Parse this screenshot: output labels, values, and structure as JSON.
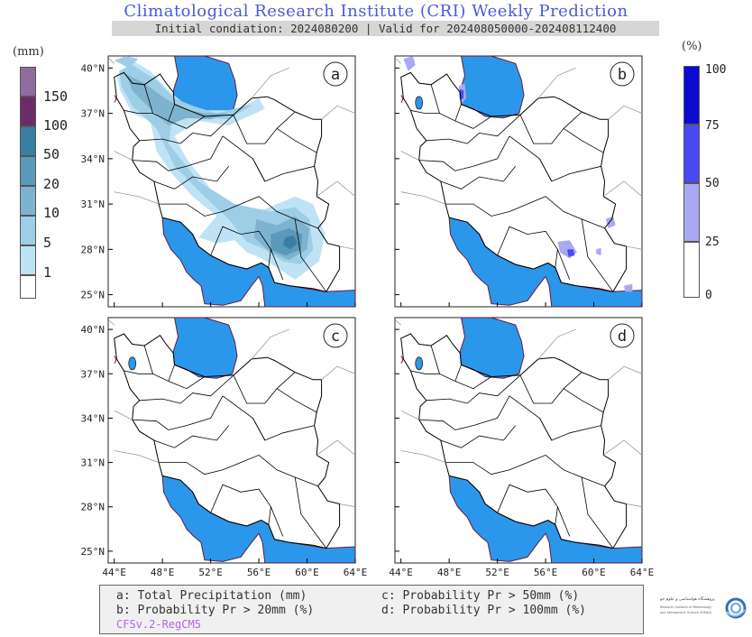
{
  "header": {
    "title": "Climatological Research Institute (CRI) Weekly Prediction",
    "subtitle": "Initial condiation: 2024080200 | Valid for 202408050000-202408112400"
  },
  "left_legend": {
    "unit": "(mm)",
    "levels": [
      "150",
      "100",
      "50",
      "20",
      "10",
      "5",
      "1"
    ],
    "colors": [
      "#8e6d9e",
      "#6b2b66",
      "#3a7ea3",
      "#5a99bb",
      "#7eb3cf",
      "#9ecde6",
      "#bfe3f4",
      "#ffffff"
    ]
  },
  "right_legend": {
    "unit": "(%)",
    "levels": [
      "100",
      "75",
      "50",
      "25",
      "0"
    ],
    "colors": [
      "#0a0ad0",
      "#4a4af5",
      "#a8a8f4",
      "#ffffff"
    ]
  },
  "map": {
    "lat_labels": [
      "40°N",
      "37°N",
      "34°N",
      "31°N",
      "28°N",
      "25°N"
    ],
    "lon_labels": [
      "44°E",
      "48°E",
      "52°E",
      "56°E",
      "60°E",
      "64°E"
    ],
    "sea_color": "#2b97ea",
    "panels": [
      {
        "id": "a",
        "label": "a"
      },
      {
        "id": "b",
        "label": "b"
      },
      {
        "id": "c",
        "label": "c"
      },
      {
        "id": "d",
        "label": "d"
      }
    ]
  },
  "footer": {
    "a": "a: Total Precipitation (mm)",
    "b": "b: Probability Pr > 20mm (%)",
    "c": "c: Probability Pr > 50mm (%)",
    "d": "d: Probability Pr > 100mm (%)",
    "model": "CFSv.2-RegCM5"
  },
  "logo": {
    "text_line1": "پژوهشگاه هواشناسی و علوم جو",
    "text_line2": "Research Institute of Meteorology",
    "text_line3": "and Atmospheric Science (RIMAS)",
    "icon": "swirl-logo-icon"
  }
}
